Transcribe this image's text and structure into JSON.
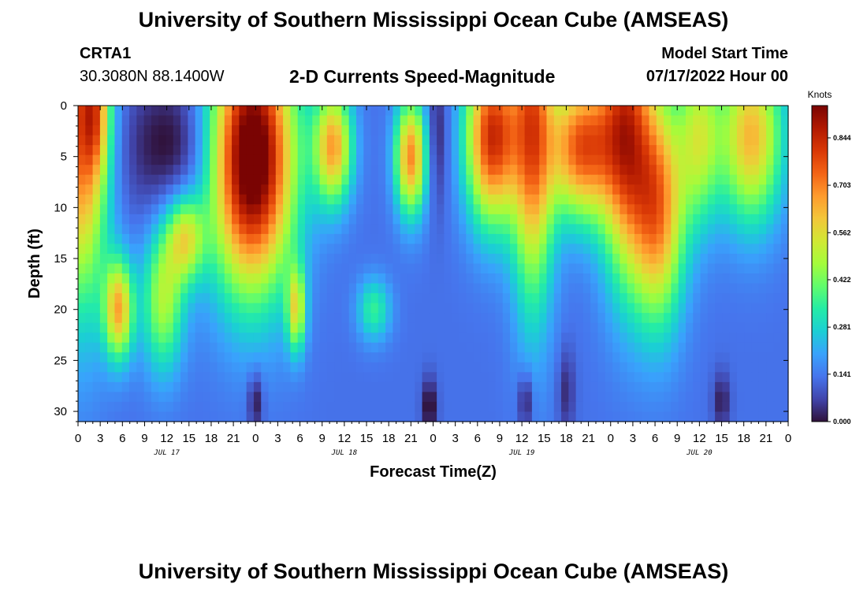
{
  "header": {
    "title": "University of Southern Mississippi Ocean Cube (AMSEAS)",
    "station": "CRTA1",
    "coords": "30.3080N  88.1400W",
    "subtitle": "2-D Currents Speed-Magnitude",
    "start_label": "Model Start Time",
    "start_value": "07/17/2022 Hour 00"
  },
  "footer": {
    "title": "University of Southern Mississippi Ocean Cube (AMSEAS)"
  },
  "colors": {
    "colormap": [
      "#30123b",
      "#4145ab",
      "#4675ed",
      "#39a2fc",
      "#1bcfd4",
      "#24eca6",
      "#61fc6c",
      "#a4fc3b",
      "#d1e834",
      "#f3c63a",
      "#fe9b2d",
      "#f36315",
      "#d93806",
      "#b11901",
      "#7a0403"
    ]
  },
  "chart_data": {
    "type": "heatmap",
    "title": "2-D Currents Speed-Magnitude",
    "xlabel": "Forecast Time(Z)",
    "ylabel": "Depth (ft)",
    "x_range_hours": [
      0,
      96
    ],
    "y_range_ft": [
      0,
      31
    ],
    "x_ticks": [
      {
        "hour": 0,
        "label": "0"
      },
      {
        "hour": 3,
        "label": "3"
      },
      {
        "hour": 6,
        "label": "6"
      },
      {
        "hour": 9,
        "label": "9"
      },
      {
        "hour": 12,
        "label": "12"
      },
      {
        "hour": 15,
        "label": "15"
      },
      {
        "hour": 18,
        "label": "18"
      },
      {
        "hour": 21,
        "label": "21"
      },
      {
        "hour": 24,
        "label": "0"
      },
      {
        "hour": 27,
        "label": "3"
      },
      {
        "hour": 30,
        "label": "6"
      },
      {
        "hour": 33,
        "label": "9"
      },
      {
        "hour": 36,
        "label": "12"
      },
      {
        "hour": 39,
        "label": "15"
      },
      {
        "hour": 42,
        "label": "18"
      },
      {
        "hour": 45,
        "label": "21"
      },
      {
        "hour": 48,
        "label": "0"
      },
      {
        "hour": 51,
        "label": "3"
      },
      {
        "hour": 54,
        "label": "6"
      },
      {
        "hour": 57,
        "label": "9"
      },
      {
        "hour": 60,
        "label": "12"
      },
      {
        "hour": 63,
        "label": "15"
      },
      {
        "hour": 66,
        "label": "18"
      },
      {
        "hour": 69,
        "label": "21"
      },
      {
        "hour": 72,
        "label": "0"
      },
      {
        "hour": 75,
        "label": "3"
      },
      {
        "hour": 78,
        "label": "6"
      },
      {
        "hour": 81,
        "label": "9"
      },
      {
        "hour": 84,
        "label": "12"
      },
      {
        "hour": 87,
        "label": "15"
      },
      {
        "hour": 90,
        "label": "18"
      },
      {
        "hour": 93,
        "label": "21"
      },
      {
        "hour": 96,
        "label": "0"
      }
    ],
    "day_labels": [
      {
        "hour": 12,
        "label": "JUL 17"
      },
      {
        "hour": 36,
        "label": "JUL 18"
      },
      {
        "hour": 60,
        "label": "JUL 19"
      },
      {
        "hour": 84,
        "label": "JUL 20"
      }
    ],
    "y_ticks": [
      0,
      5,
      10,
      15,
      20,
      25,
      30
    ],
    "colorbar": {
      "unit": "Knots",
      "min": 0,
      "max": 0.94,
      "ticks": [
        0.0,
        0.141,
        0.281,
        0.422,
        0.562,
        0.703,
        0.844
      ],
      "tick_labels": [
        "0.000",
        "0.141",
        "0.281",
        "0.422",
        "0.562",
        "0.703",
        "0.844"
      ]
    },
    "features": [
      {
        "t": 0.5,
        "d": 2,
        "st": 2.5,
        "sd": 12,
        "v": 0.62
      },
      {
        "t": 2.5,
        "d": 1,
        "st": 1.3,
        "sd": 4,
        "v": 0.25
      },
      {
        "t": 5.5,
        "d": 20,
        "st": 1.4,
        "sd": 3.5,
        "v": 0.5
      },
      {
        "t": 11.5,
        "d": 19,
        "st": 2.0,
        "sd": 5,
        "v": 0.35
      },
      {
        "t": 14.5,
        "d": 13,
        "st": 1.8,
        "sd": 3,
        "v": 0.38
      },
      {
        "t": 13,
        "d": 4,
        "st": 5,
        "sd": 5,
        "v": -0.15
      },
      {
        "t": 23.5,
        "d": 5,
        "st": 4.0,
        "sd": 9,
        "v": 0.92
      },
      {
        "t": 29.5,
        "d": 20,
        "st": 0.9,
        "sd": 3,
        "v": 0.38
      },
      {
        "t": 34.5,
        "d": 4,
        "st": 1.8,
        "sd": 4,
        "v": 0.52
      },
      {
        "t": 40,
        "d": 20,
        "st": 1.6,
        "sd": 2.2,
        "v": 0.22
      },
      {
        "t": 45,
        "d": 5,
        "st": 1.5,
        "sd": 4,
        "v": 0.56
      },
      {
        "t": 48.5,
        "d": 3,
        "st": 1.0,
        "sd": 5,
        "v": -0.12
      },
      {
        "t": 56,
        "d": 3,
        "st": 2.5,
        "sd": 6,
        "v": 0.7
      },
      {
        "t": 61.5,
        "d": 2,
        "st": 2.0,
        "sd": 12,
        "v": 0.58
      },
      {
        "t": 68,
        "d": 4,
        "st": 3.0,
        "sd": 5,
        "v": 0.62
      },
      {
        "t": 74,
        "d": 2,
        "st": 2.5,
        "sd": 10,
        "v": 0.62
      },
      {
        "t": 78.5,
        "d": 10,
        "st": 2.5,
        "sd": 8,
        "v": 0.55
      },
      {
        "t": 84,
        "d": 3,
        "st": 2.0,
        "sd": 6,
        "v": 0.35
      },
      {
        "t": 91,
        "d": 3,
        "st": 3.0,
        "sd": 6,
        "v": 0.5
      }
    ],
    "deep_lows": [
      {
        "t": 24,
        "d": 29,
        "st": 0.7,
        "sd": 2,
        "v": -0.14
      },
      {
        "t": 47.5,
        "d": 29.5,
        "st": 0.7,
        "sd": 2,
        "v": -0.16
      },
      {
        "t": 60.5,
        "d": 29,
        "st": 0.7,
        "sd": 2,
        "v": -0.14
      },
      {
        "t": 66,
        "d": 28,
        "st": 0.8,
        "sd": 3,
        "v": -0.1
      },
      {
        "t": 87,
        "d": 29,
        "st": 0.8,
        "sd": 2,
        "v": -0.12
      }
    ],
    "base_value": 0.13,
    "grid": false
  }
}
